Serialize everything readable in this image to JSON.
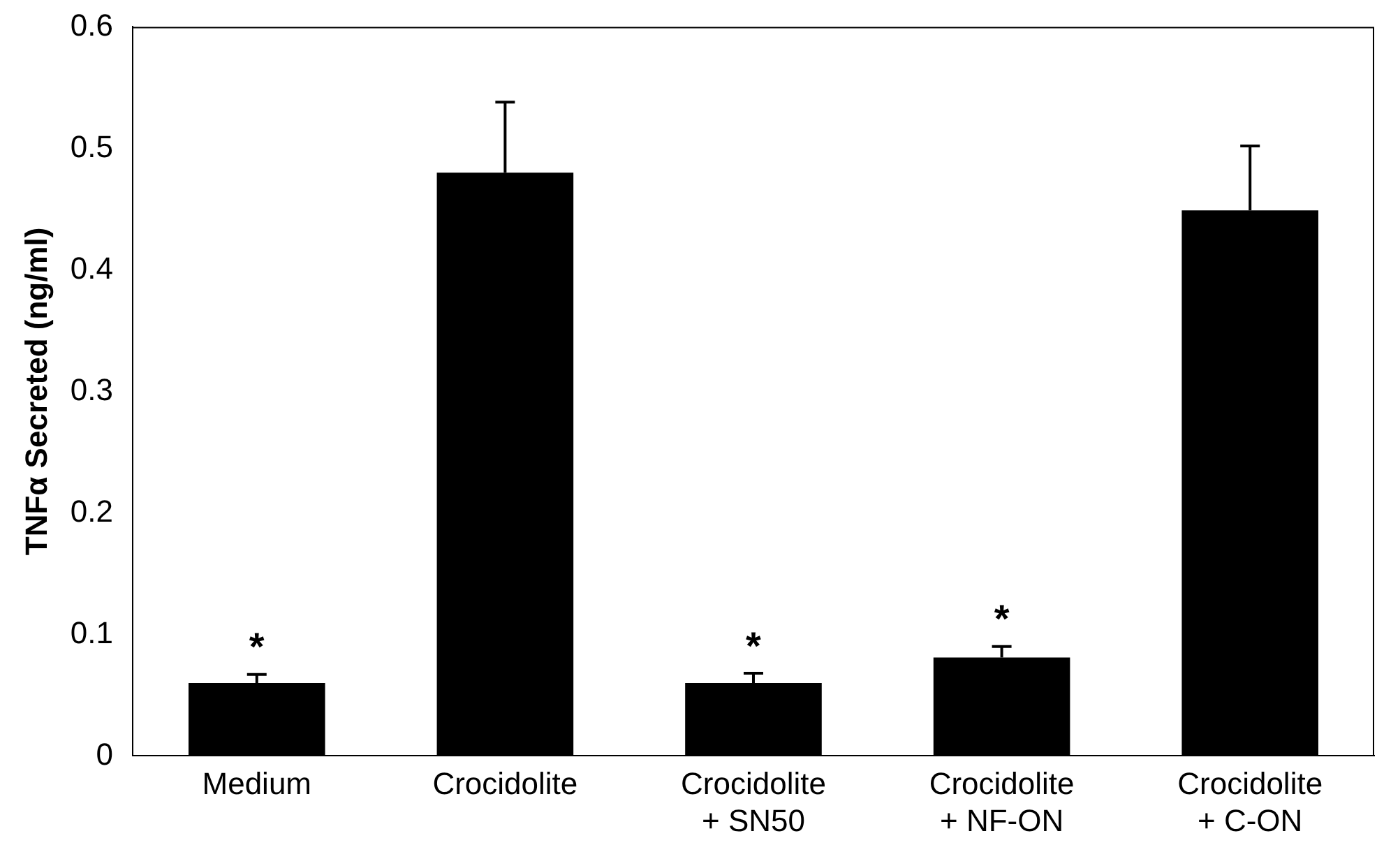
{
  "chart_data": {
    "type": "bar",
    "ylabel": "TNFα Secreted (ng/ml)",
    "categories": [
      "Medium",
      "Crocidolite",
      "Crocidolite\n+ SN50",
      "Crocidolite\n+ NF-ON",
      "Crocidolite\n+ C-ON"
    ],
    "values": [
      0.06,
      0.48,
      0.06,
      0.081,
      0.449
    ],
    "errors": [
      [
        0.06,
        0.067
      ],
      [
        0.48,
        0.538
      ],
      [
        0.06,
        0.068
      ],
      [
        0.081,
        0.09
      ],
      [
        0.449,
        0.502
      ]
    ],
    "color": "#000000",
    "ylim": [
      0,
      0.6
    ],
    "yticks": [
      0,
      {
        "value": 0.1,
        "label": "0.1"
      },
      {
        "value": 0.2,
        "label": "0.2"
      },
      {
        "value": 0.3,
        "label": "0.3"
      },
      {
        "value": 0.4,
        "label": "0.4"
      },
      {
        "value": 0.5,
        "label": "0.5"
      },
      {
        "value": 0.6,
        "label": "0.6"
      }
    ],
    "grid": false,
    "legend": false,
    "annotations": [
      {
        "text": "*",
        "x": "Medium",
        "y": 0.067
      },
      {
        "text": "*",
        "x": "Crocidolite\n+ SN50",
        "y": 0.068
      },
      {
        "text": "*",
        "x": "Crocidolite\n+ NF-ON",
        "y": 0.09
      }
    ]
  }
}
